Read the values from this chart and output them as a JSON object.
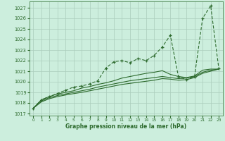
{
  "title": "Graphe pression niveau de la mer (hPa)",
  "background_color": "#cceedd",
  "grid_color": "#aaccbb",
  "line_color": "#2d6a2d",
  "xlim": [
    -0.5,
    23.5
  ],
  "ylim": [
    1016.8,
    1027.6
  ],
  "yticks": [
    1017,
    1018,
    1019,
    1020,
    1021,
    1022,
    1023,
    1024,
    1025,
    1026,
    1027
  ],
  "xticks": [
    0,
    1,
    2,
    3,
    4,
    5,
    6,
    7,
    8,
    9,
    10,
    11,
    12,
    13,
    14,
    15,
    16,
    17,
    18,
    19,
    20,
    21,
    22,
    23
  ],
  "hours": [
    0,
    1,
    2,
    3,
    4,
    5,
    6,
    7,
    8,
    9,
    10,
    11,
    12,
    13,
    14,
    15,
    16,
    17,
    18,
    19,
    20,
    21,
    22,
    23
  ],
  "pressure_main": [
    1017.5,
    1018.3,
    1018.6,
    1018.9,
    1019.2,
    1019.5,
    1019.6,
    1019.8,
    1020.1,
    1021.3,
    1021.9,
    1022.0,
    1021.8,
    1022.2,
    1022.0,
    1022.5,
    1023.3,
    1024.4,
    1020.5,
    1020.2,
    1020.5,
    1026.0,
    1027.2,
    1021.3
  ],
  "pressure_line2": [
    1017.5,
    1018.3,
    1018.6,
    1018.85,
    1019.0,
    1019.15,
    1019.4,
    1019.55,
    1019.75,
    1019.9,
    1020.1,
    1020.35,
    1020.5,
    1020.65,
    1020.8,
    1020.9,
    1021.05,
    1020.7,
    1020.5,
    1020.4,
    1020.55,
    1021.1,
    1021.2,
    1021.2
  ],
  "pressure_line3": [
    1017.5,
    1018.2,
    1018.5,
    1018.7,
    1018.85,
    1019.0,
    1019.15,
    1019.3,
    1019.5,
    1019.65,
    1019.8,
    1019.95,
    1020.1,
    1020.2,
    1020.3,
    1020.4,
    1020.5,
    1020.4,
    1020.3,
    1020.35,
    1020.5,
    1020.9,
    1021.1,
    1021.2
  ],
  "pressure_line4": [
    1017.5,
    1018.1,
    1018.4,
    1018.6,
    1018.75,
    1018.88,
    1019.0,
    1019.15,
    1019.3,
    1019.45,
    1019.6,
    1019.75,
    1019.85,
    1019.95,
    1020.05,
    1020.15,
    1020.3,
    1020.25,
    1020.15,
    1020.2,
    1020.4,
    1020.8,
    1021.0,
    1021.2
  ]
}
